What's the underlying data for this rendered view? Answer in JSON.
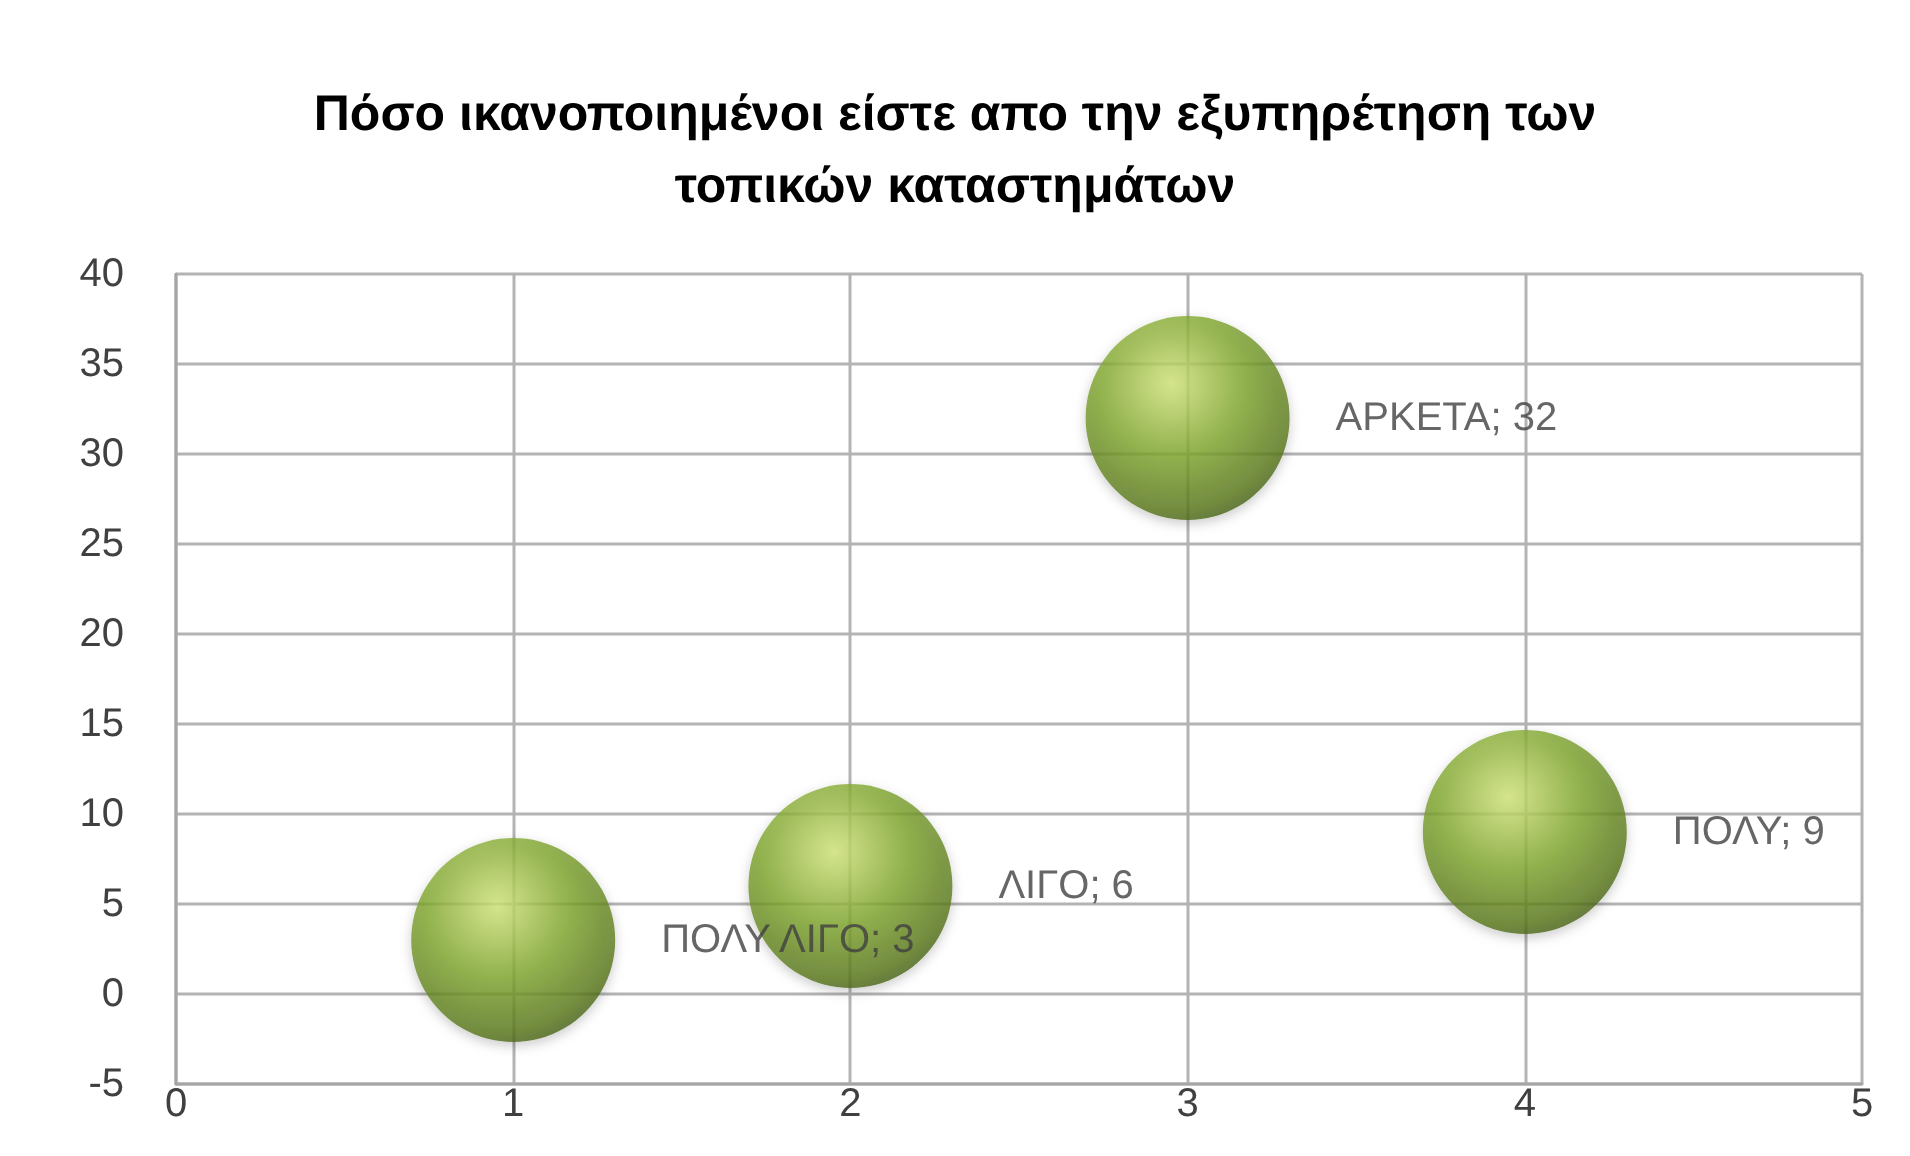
{
  "chart_data": {
    "type": "bubble",
    "title": "Πόσο ικανοποιημένοι είστε απο την εξυπηρέτηση των τοπικών καταστημάτων",
    "x": [
      1,
      2,
      3,
      4
    ],
    "values": [
      3,
      6,
      32,
      9
    ],
    "sizes": [
      1,
      1,
      1,
      1
    ],
    "color": "#7ea52c",
    "value_labels": [
      "ΠΟΛΥ ΛΙΓΟ; 3",
      "ΛΙΓΟ; 6",
      "ΑΡΚΕΤΑ; 32",
      "ΠΟΛΥ; 9"
    ],
    "xlim": [
      0,
      5
    ],
    "xticks": [
      0,
      1,
      2,
      3,
      4,
      5
    ],
    "ylim": [
      -5,
      40
    ],
    "yticks": [
      -5,
      0,
      5,
      10,
      15,
      20,
      25,
      30,
      35,
      40
    ],
    "grid": true
  }
}
